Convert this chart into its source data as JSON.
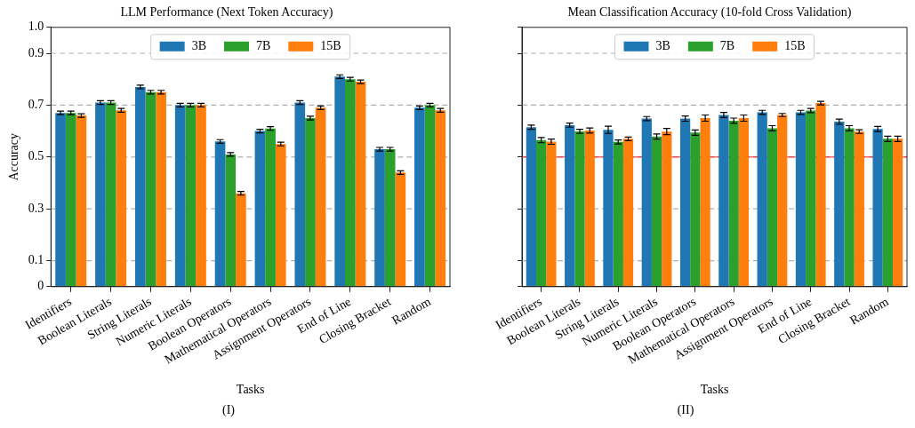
{
  "chart_data": [
    {
      "type": "bar",
      "title": "LLM Performance (Next Token Accuracy)",
      "xlabel": "Tasks",
      "ylabel": "Accuracy",
      "annotations": [
        "(I)"
      ],
      "categories": [
        "Identifiers",
        "Boolean Literals",
        "String Literals",
        "Numeric Literals",
        "Boolean Operators",
        "Mathematical Operators",
        "Assignment Operators",
        "End of Line",
        "Closing Bracket",
        "Random"
      ],
      "series": [
        {
          "name": "3B",
          "color": "#1f77b4",
          "values": [
            0.67,
            0.71,
            0.77,
            0.7,
            0.56,
            0.6,
            0.71,
            0.81,
            0.53,
            0.69
          ],
          "errors": [
            0.007,
            0.007,
            0.007,
            0.007,
            0.007,
            0.007,
            0.007,
            0.007,
            0.007,
            0.007
          ]
        },
        {
          "name": "7B",
          "color": "#2ca02c",
          "values": [
            0.67,
            0.71,
            0.75,
            0.7,
            0.51,
            0.61,
            0.65,
            0.8,
            0.53,
            0.7
          ],
          "errors": [
            0.007,
            0.007,
            0.007,
            0.007,
            0.007,
            0.007,
            0.007,
            0.007,
            0.007,
            0.007
          ]
        },
        {
          "name": "15B",
          "color": "#ff7f0e",
          "values": [
            0.66,
            0.68,
            0.75,
            0.7,
            0.36,
            0.55,
            0.69,
            0.79,
            0.44,
            0.68
          ],
          "errors": [
            0.007,
            0.007,
            0.007,
            0.007,
            0.007,
            0.007,
            0.007,
            0.007,
            0.007,
            0.007
          ]
        }
      ],
      "ylim": [
        0,
        1
      ],
      "yticks": [
        0,
        0.1,
        0.3,
        0.5,
        0.7,
        0.9,
        {
          "value": 1,
          "label": "1.0"
        }
      ],
      "grid": "y",
      "legend": "top"
    },
    {
      "type": "bar",
      "title": "Mean Classification Accuracy (10-fold Cross Validation)",
      "xlabel": "Tasks",
      "annotations": [
        "(II)"
      ],
      "categories": [
        "Identifiers",
        "Boolean Literals",
        "String Literals",
        "Numeric Literals",
        "Boolean Operators",
        "Mathematical Operators",
        "Assignment Operators",
        "End of Line",
        "Closing Bracket",
        "Random"
      ],
      "series": [
        {
          "name": "3B",
          "color": "#1f77b4",
          "values": [
            0.615,
            0.623,
            0.605,
            0.648,
            0.648,
            0.662,
            0.672,
            0.672,
            0.636,
            0.608
          ],
          "errors": [
            0.008,
            0.008,
            0.014,
            0.008,
            0.01,
            0.01,
            0.008,
            0.008,
            0.01,
            0.01
          ]
        },
        {
          "name": "7B",
          "color": "#2ca02c",
          "values": [
            0.565,
            0.599,
            0.558,
            0.579,
            0.594,
            0.64,
            0.611,
            0.679,
            0.611,
            0.57
          ],
          "errors": [
            0.01,
            0.008,
            0.008,
            0.01,
            0.01,
            0.01,
            0.01,
            0.008,
            0.01,
            0.01
          ]
        },
        {
          "name": "15B",
          "color": "#ff7f0e",
          "values": [
            0.559,
            0.602,
            0.57,
            0.598,
            0.65,
            0.65,
            0.662,
            0.708,
            0.598,
            0.57
          ],
          "errors": [
            0.01,
            0.01,
            0.007,
            0.012,
            0.012,
            0.012,
            0.006,
            0.007,
            0.007,
            0.01
          ]
        }
      ],
      "ylim": [
        0,
        1
      ],
      "yticks": [
        0,
        0.1,
        0.3,
        0.5,
        0.7,
        0.9,
        1
      ],
      "grid": "y",
      "legend": "top",
      "tick_labels": "x",
      "ref_lines": [
        {
          "axis": "y",
          "value": 0.5,
          "color": "#ff0000"
        }
      ]
    }
  ]
}
